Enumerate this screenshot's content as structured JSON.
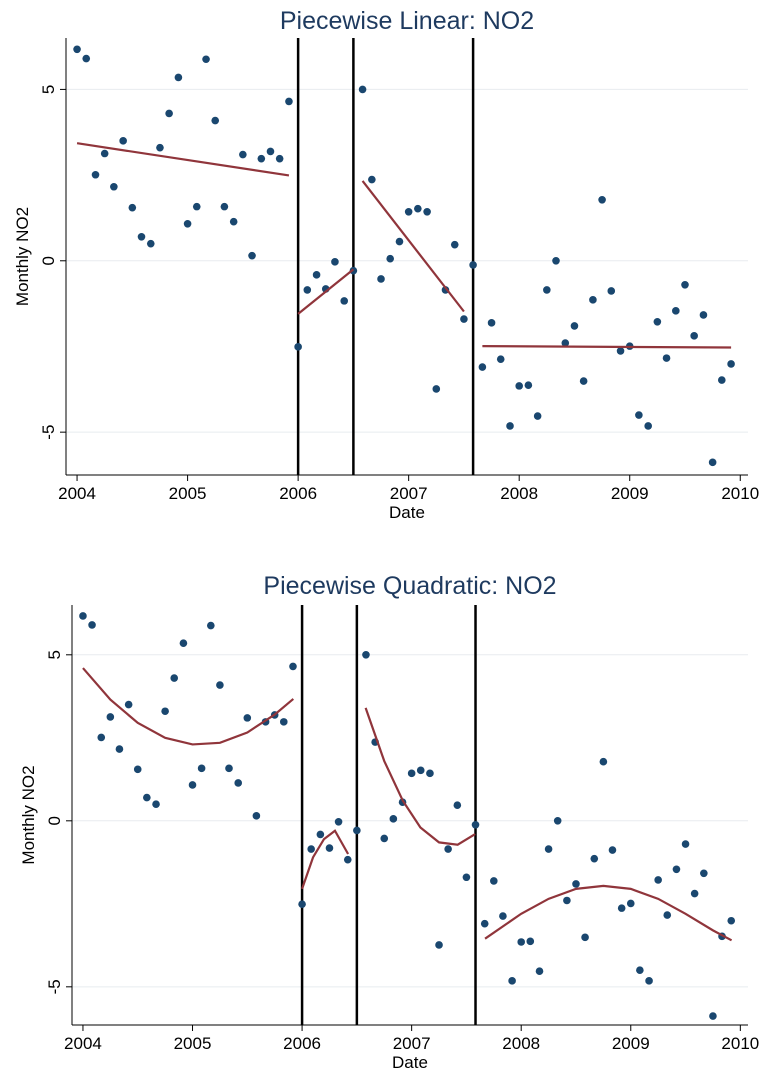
{
  "chart_data": [
    {
      "type": "scatter",
      "title": "Piecewise Linear: NO2",
      "x_label": "Date",
      "y_label": "Monthly NO2",
      "x": [
        2004,
        2004.083,
        2004.167,
        2004.25,
        2004.333,
        2004.417,
        2004.5,
        2004.583,
        2004.667,
        2004.75,
        2004.833,
        2004.917,
        2005,
        2005.083,
        2005.167,
        2005.25,
        2005.333,
        2005.417,
        2005.5,
        2005.583,
        2005.667,
        2005.75,
        2005.833,
        2005.917,
        2006,
        2006.083,
        2006.167,
        2006.25,
        2006.333,
        2006.417,
        2006.5,
        2006.583,
        2006.667,
        2006.75,
        2006.833,
        2006.917,
        2007,
        2007.083,
        2007.167,
        2007.25,
        2007.333,
        2007.417,
        2007.5,
        2007.583,
        2007.667,
        2007.75,
        2007.833,
        2007.917,
        2008,
        2008.083,
        2008.167,
        2008.25,
        2008.333,
        2008.417,
        2008.5,
        2008.583,
        2008.667,
        2008.75,
        2008.833,
        2008.917,
        2009,
        2009.083,
        2009.167,
        2009.25,
        2009.333,
        2009.417,
        2009.5,
        2009.583,
        2009.667,
        2009.75,
        2009.833,
        2009.917
      ],
      "values": [
        6.17,
        5.9,
        2.51,
        3.13,
        2.16,
        3.5,
        1.55,
        0.7,
        0.5,
        3.3,
        4.3,
        5.35,
        1.08,
        1.58,
        5.88,
        4.09,
        1.58,
        1.14,
        3.1,
        0.15,
        2.98,
        3.19,
        2.98,
        4.65,
        -2.51,
        -0.85,
        -0.41,
        -0.82,
        -0.03,
        -1.17,
        -0.29,
        5.0,
        2.37,
        -0.53,
        0.06,
        0.56,
        1.43,
        1.52,
        1.43,
        -3.74,
        -0.85,
        0.47,
        -1.7,
        -0.12,
        -3.1,
        -1.81,
        -2.87,
        -4.82,
        -3.65,
        -3.63,
        -4.53,
        -0.85,
        0.0,
        -2.4,
        -1.9,
        -3.51,
        -1.14,
        1.78,
        -0.88,
        -2.63,
        -2.49,
        -4.5,
        -4.82,
        -1.78,
        -2.84,
        -1.46,
        -0.7,
        -2.19,
        -1.58,
        -5.88,
        -3.48,
        -3.01
      ],
      "color": "#1a476f",
      "fit_color": "#90353b",
      "fit": [
        {
          "x": [
            2004,
            2005.917
          ],
          "values": [
            3.43,
            2.49
          ]
        },
        {
          "x": [
            2006,
            2006.5
          ],
          "values": [
            -1.55,
            -0.25
          ]
        },
        {
          "x": [
            2006.583,
            2007.5
          ],
          "values": [
            2.33,
            -1.48
          ]
        },
        {
          "x": [
            2007.667,
            2009.917
          ],
          "values": [
            -2.49,
            -2.53
          ]
        }
      ],
      "vlines": [
        2006,
        2006.5,
        2007.583
      ],
      "xlim": [
        2003.9,
        2010.07
      ],
      "xticks": [
        2004,
        2005,
        2006,
        2007,
        2008,
        2009,
        2010
      ],
      "ylim": [
        -6.25,
        6.5
      ],
      "yticks": [
        -5,
        0,
        5
      ],
      "grid": true
    },
    {
      "type": "scatter",
      "title": "Piecewise Quadratic: NO2",
      "x_label": "Date",
      "y_label": "Monthly NO2",
      "x": [
        2004,
        2004.083,
        2004.167,
        2004.25,
        2004.333,
        2004.417,
        2004.5,
        2004.583,
        2004.667,
        2004.75,
        2004.833,
        2004.917,
        2005,
        2005.083,
        2005.167,
        2005.25,
        2005.333,
        2005.417,
        2005.5,
        2005.583,
        2005.667,
        2005.75,
        2005.833,
        2005.917,
        2006,
        2006.083,
        2006.167,
        2006.25,
        2006.333,
        2006.417,
        2006.5,
        2006.583,
        2006.667,
        2006.75,
        2006.833,
        2006.917,
        2007,
        2007.083,
        2007.167,
        2007.25,
        2007.333,
        2007.417,
        2007.5,
        2007.583,
        2007.667,
        2007.75,
        2007.833,
        2007.917,
        2008,
        2008.083,
        2008.167,
        2008.25,
        2008.333,
        2008.417,
        2008.5,
        2008.583,
        2008.667,
        2008.75,
        2008.833,
        2008.917,
        2009,
        2009.083,
        2009.167,
        2009.25,
        2009.333,
        2009.417,
        2009.5,
        2009.583,
        2009.667,
        2009.75,
        2009.833,
        2009.917
      ],
      "values": [
        6.17,
        5.9,
        2.51,
        3.13,
        2.16,
        3.5,
        1.55,
        0.7,
        0.5,
        3.3,
        4.3,
        5.35,
        1.08,
        1.58,
        5.88,
        4.09,
        1.58,
        1.14,
        3.1,
        0.15,
        2.98,
        3.19,
        2.98,
        4.65,
        -2.51,
        -0.85,
        -0.41,
        -0.82,
        -0.03,
        -1.17,
        -0.29,
        5.0,
        2.37,
        -0.53,
        0.06,
        0.56,
        1.43,
        1.52,
        1.43,
        -3.74,
        -0.85,
        0.47,
        -1.7,
        -0.12,
        -3.1,
        -1.81,
        -2.87,
        -4.82,
        -3.65,
        -3.63,
        -4.53,
        -0.85,
        0.0,
        -2.4,
        -1.9,
        -3.51,
        -1.14,
        1.78,
        -0.88,
        -2.63,
        -2.49,
        -4.5,
        -4.82,
        -1.78,
        -2.84,
        -1.46,
        -0.7,
        -2.19,
        -1.58,
        -5.88,
        -3.48,
        -3.01
      ],
      "color": "#1a476f",
      "fit_color": "#90353b",
      "fit": [
        {
          "x": [
            2004,
            2004.25,
            2004.5,
            2004.75,
            2005,
            2005.25,
            2005.5,
            2005.75,
            2005.92
          ],
          "values": [
            4.6,
            3.65,
            2.95,
            2.5,
            2.3,
            2.35,
            2.66,
            3.2,
            3.67
          ]
        },
        {
          "x": [
            2006,
            2006.1,
            2006.2,
            2006.3,
            2006.42
          ],
          "values": [
            -2.05,
            -1.1,
            -0.55,
            -0.3,
            -1.0
          ]
        },
        {
          "x": [
            2006.58,
            2006.75,
            2006.92,
            2007.08,
            2007.25,
            2007.42,
            2007.58
          ],
          "values": [
            3.4,
            1.8,
            0.6,
            -0.2,
            -0.65,
            -0.72,
            -0.4
          ]
        },
        {
          "x": [
            2007.67,
            2008,
            2008.25,
            2008.5,
            2008.75,
            2009,
            2009.25,
            2009.5,
            2009.75,
            2009.92
          ],
          "values": [
            -3.55,
            -2.8,
            -2.35,
            -2.05,
            -1.96,
            -2.05,
            -2.35,
            -2.8,
            -3.3,
            -3.6
          ]
        }
      ],
      "vlines": [
        2006,
        2006.5,
        2007.583
      ],
      "xlim": [
        2003.9,
        2010.07
      ],
      "xticks": [
        2004,
        2005,
        2006,
        2007,
        2008,
        2009,
        2010
      ],
      "ylim": [
        -6.15,
        6.5
      ],
      "yticks": [
        -5,
        0,
        5
      ],
      "grid": true
    }
  ]
}
